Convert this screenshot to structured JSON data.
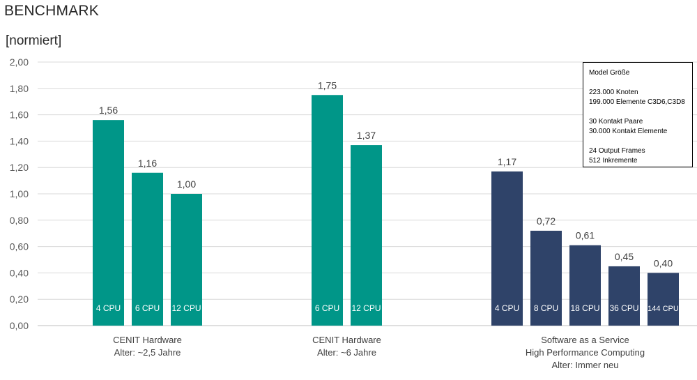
{
  "title": "BENCHMARK",
  "unit_label": "[normiert]",
  "info_box": {
    "lines": [
      "Model Größe",
      "",
      "223.000 Knoten",
      "199.000 Elemente C3D6,C3D8",
      "",
      "30 Kontakt Paare",
      "30.000 Kontakt Elemente",
      "",
      "24 Output Frames",
      "512 Inkremente"
    ]
  },
  "chart_data": {
    "type": "bar",
    "ylim": [
      0,
      2
    ],
    "yticks": [
      "0,00",
      "0,20",
      "0,40",
      "0,60",
      "0,80",
      "1,00",
      "1,20",
      "1,40",
      "1,60",
      "1,80",
      "2,00"
    ],
    "grid": true,
    "groups": [
      {
        "label": [
          "CENIT Hardware",
          "Alter: ~2,5 Jahre"
        ],
        "color": "#009688",
        "bars": [
          {
            "category": "4 CPU",
            "value": 1.56,
            "label": "1,56"
          },
          {
            "category": "6 CPU",
            "value": 1.16,
            "label": "1,16"
          },
          {
            "category": "12 CPU",
            "value": 1.0,
            "label": "1,00"
          }
        ]
      },
      {
        "label": [
          "CENIT Hardware",
          "Alter:  ~6 Jahre"
        ],
        "color": "#009688",
        "bars": [
          {
            "category": "6 CPU",
            "value": 1.75,
            "label": "1,75"
          },
          {
            "category": "12 CPU",
            "value": 1.37,
            "label": "1,37"
          }
        ]
      },
      {
        "label": [
          "Software as a Service",
          "High Performance Computing",
          "Alter: Immer neu"
        ],
        "color": "#2F4369",
        "bars": [
          {
            "category": "4 CPU",
            "value": 1.17,
            "label": "1,17"
          },
          {
            "category": "8 CPU",
            "value": 0.72,
            "label": "0,72"
          },
          {
            "category": "18 CPU",
            "value": 0.61,
            "label": "0,61"
          },
          {
            "category": "36 CPU",
            "value": 0.45,
            "label": "0,45"
          },
          {
            "category": "144 CPU",
            "value": 0.4,
            "label": "0,40"
          }
        ]
      }
    ]
  }
}
